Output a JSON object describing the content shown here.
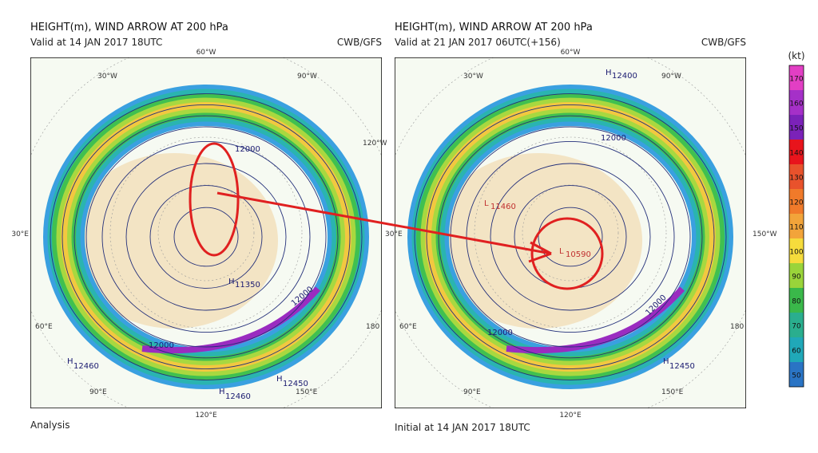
{
  "panels": [
    {
      "title": "HEIGHT(m), WIND ARROW AT 200 hPa",
      "valid": "Valid at 14 JAN 2017 18UTC",
      "source": "CWB/GFS",
      "footer": "Analysis",
      "labels": [
        "60°W",
        "30°W",
        "90°W",
        "120°W",
        "30°E",
        "60°E",
        "90°E",
        "120°E",
        "150°E",
        "180",
        "12000",
        "12000",
        "12000",
        "H",
        "12460",
        "H",
        "12460",
        "H",
        "12450",
        "H",
        "11350"
      ]
    },
    {
      "title": "HEIGHT(m), WIND ARROW AT 200 hPa",
      "valid": "Valid at 21 JAN 2017 06UTC(+156)",
      "source": "CWB/GFS",
      "footer": "Initial at 14 JAN 2017 18UTC",
      "labels": [
        "60°W",
        "30°W",
        "90°W",
        "150°W",
        "30°E",
        "60°E",
        "90°E",
        "120°E",
        "150°E",
        "180",
        "12000",
        "12000",
        "12000",
        "H",
        "12400",
        "H",
        "12450",
        "L",
        "11460",
        "L",
        "10590"
      ]
    }
  ],
  "colorbar": {
    "unit": "(kt)",
    "ticks": [
      170,
      160,
      150,
      140,
      130,
      120,
      110,
      100,
      90,
      80,
      70,
      60,
      50
    ],
    "colors": [
      "#e23fc4",
      "#a530c8",
      "#7b22b8",
      "#e8141c",
      "#e8522c",
      "#f07a2a",
      "#f2a43a",
      "#f6dc3c",
      "#9ad43a",
      "#3ab84a",
      "#2aae8e",
      "#20a8b8",
      "#2a74c4"
    ]
  }
}
